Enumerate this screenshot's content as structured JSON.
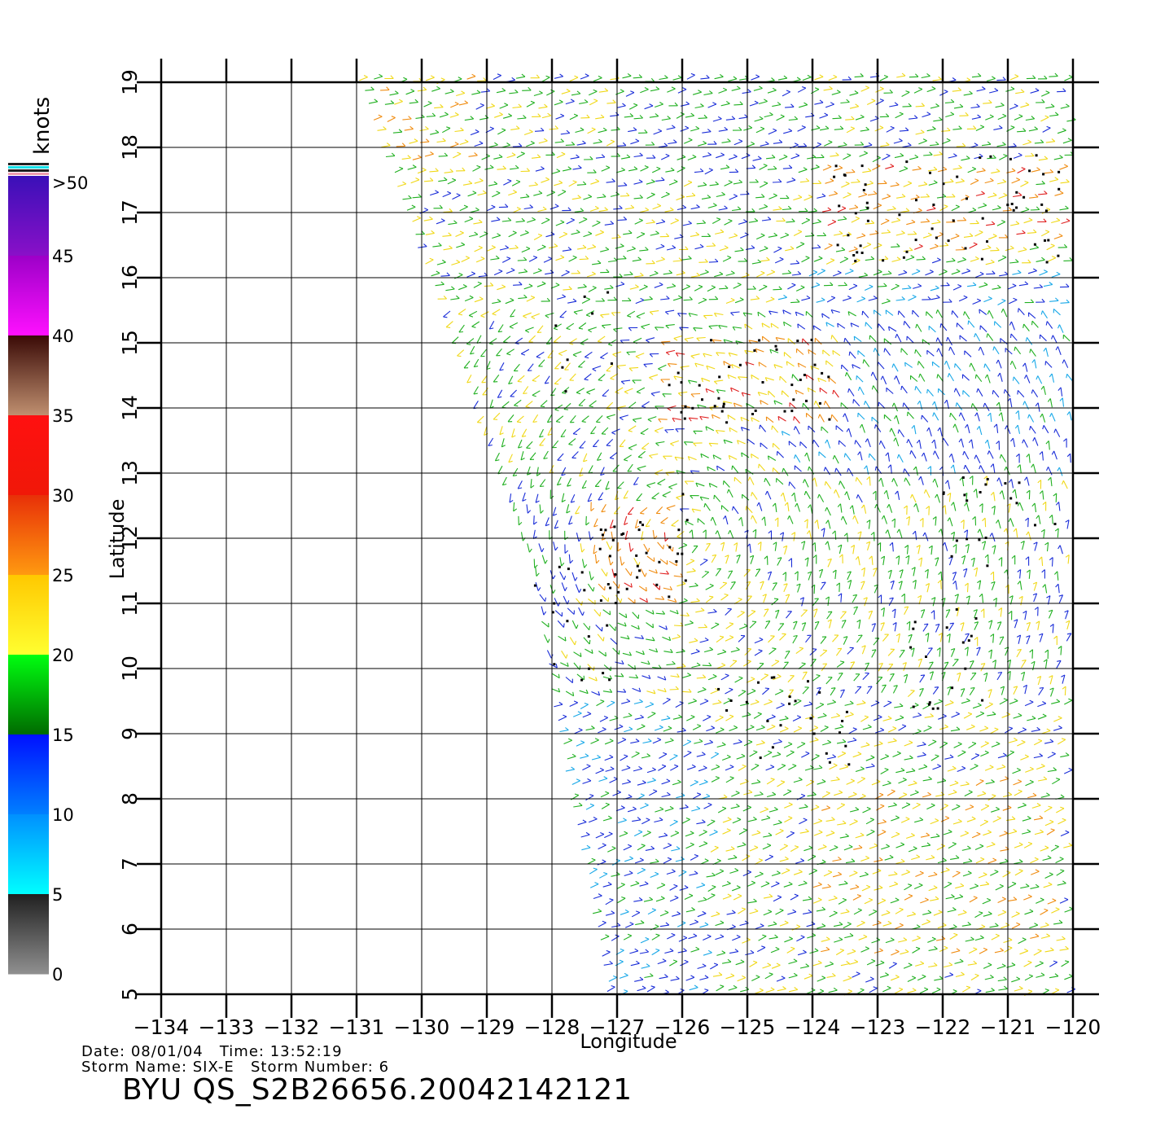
{
  "legend": {
    "unit": "knots",
    "labels": [
      ">50",
      "45",
      "40",
      "35",
      "30",
      "25",
      "20",
      "15",
      "10",
      "5",
      "0"
    ],
    "bands": [
      {
        "min": 45,
        "max": 50,
        "top": "#3a10b8",
        "bottom": "#8a10c8"
      },
      {
        "min": 40,
        "max": 45,
        "top": "#9c00c8",
        "bottom": "#ff10ff"
      },
      {
        "min": 35,
        "max": 40,
        "top": "#3a0a06",
        "bottom": "#c09070"
      },
      {
        "min": 30,
        "max": 35,
        "top": "#ff1010",
        "bottom": "#f01808"
      },
      {
        "min": 25,
        "max": 30,
        "top": "#e83008",
        "bottom": "#ff9a10"
      },
      {
        "min": 20,
        "max": 25,
        "top": "#ffc800",
        "bottom": "#ffff30"
      },
      {
        "min": 15,
        "max": 20,
        "top": "#00ff10",
        "bottom": "#006a00"
      },
      {
        "min": 10,
        "max": 15,
        "top": "#0010ff",
        "bottom": "#0080ff"
      },
      {
        "min": 5,
        "max": 10,
        "top": "#0090ff",
        "bottom": "#00ffff"
      },
      {
        "min": 0,
        "max": 5,
        "top": "#202020",
        "bottom": "#909090"
      }
    ]
  },
  "axes": {
    "xlabel": "Longitude",
    "ylabel": "Latitude",
    "lon_ticks": [
      -134,
      -133,
      -132,
      -131,
      -130,
      -129,
      -128,
      -127,
      -126,
      -125,
      -124,
      -123,
      -122,
      -121,
      -120
    ],
    "lat_ticks": [
      5,
      6,
      7,
      8,
      9,
      10,
      11,
      12,
      13,
      14,
      15,
      16,
      17,
      18,
      19
    ],
    "xlim": [
      -134,
      -120
    ],
    "ylim": [
      5,
      19
    ]
  },
  "swath": {
    "edge": [
      [
        -130.9,
        19
      ],
      [
        -128.3,
        11.5
      ],
      [
        -127.1,
        5
      ]
    ]
  },
  "wind_colors": {
    "blue": "#1a2dd8",
    "cyan": "#18a8e8",
    "green": "#20b020",
    "yellow": "#f0d818",
    "orange": "#f08c10",
    "red": "#e02020",
    "rain_flag": "#000000"
  },
  "footer": {
    "date_label": "Date:",
    "date": "08/01/04",
    "time_label": "Time:",
    "time": "13:52:19",
    "storm_name_label": "Storm Name:",
    "storm_name": "SIX-E",
    "storm_number_label": "Storm Number:",
    "storm_number": "6",
    "title": "BYU QS_S2B26656.20042142121"
  }
}
